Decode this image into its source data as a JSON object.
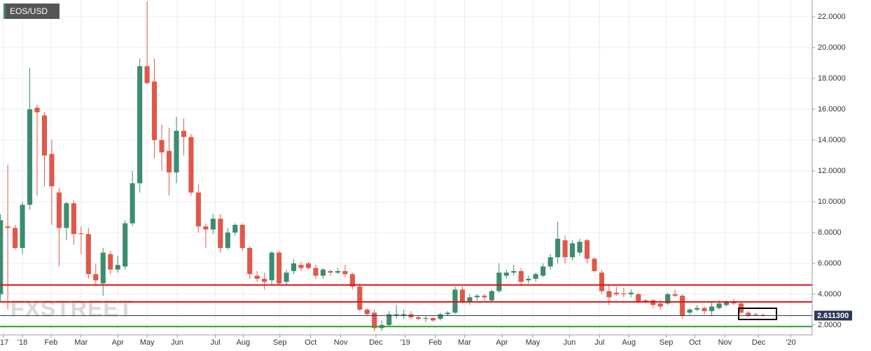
{
  "chart_data": {
    "type": "candlestick",
    "title": "EOS/USD",
    "watermark": "FXSTREET",
    "up_color": "#3d8c6f",
    "down_color": "#e0584a",
    "grid": true,
    "xlim": [
      -0.06,
      110.7
    ],
    "ylim": [
      1.36,
      23.09
    ],
    "xticks": [
      {
        "value": 0.42,
        "label": "'17"
      },
      {
        "value": 3,
        "label": "'18"
      },
      {
        "value": 6.9,
        "label": "Feb"
      },
      {
        "value": 11,
        "label": "Mar"
      },
      {
        "value": 16,
        "label": "Apr"
      },
      {
        "value": 20,
        "label": "May"
      },
      {
        "value": 24.1,
        "label": "Jun"
      },
      {
        "value": 29.3,
        "label": "Jul"
      },
      {
        "value": 33.1,
        "label": "Aug"
      },
      {
        "value": 38.1,
        "label": "Sep"
      },
      {
        "value": 42.3,
        "label": "Oct"
      },
      {
        "value": 46.4,
        "label": "Nov"
      },
      {
        "value": 51.2,
        "label": "Dec"
      },
      {
        "value": 55.2,
        "label": "'19"
      },
      {
        "value": 59.3,
        "label": "Feb"
      },
      {
        "value": 63.3,
        "label": "Mar"
      },
      {
        "value": 68.4,
        "label": "Apr"
      },
      {
        "value": 72.6,
        "label": "May"
      },
      {
        "value": 77.6,
        "label": "Jun"
      },
      {
        "value": 81.7,
        "label": "Jul"
      },
      {
        "value": 85.7,
        "label": "Aug"
      },
      {
        "value": 90.8,
        "label": "Sep"
      },
      {
        "value": 94.7,
        "label": "Oct"
      },
      {
        "value": 98.8,
        "label": "Nov"
      },
      {
        "value": 103.4,
        "label": "Dec"
      },
      {
        "value": 107.8,
        "label": "'20"
      }
    ],
    "yticks": [
      {
        "value": 2,
        "label": "2.0000"
      },
      {
        "value": 4,
        "label": "4.0000"
      },
      {
        "value": 6,
        "label": "6.0000"
      },
      {
        "value": 8,
        "label": "8.0000"
      },
      {
        "value": 10,
        "label": "10.0000"
      },
      {
        "value": 12,
        "label": "12.0000"
      },
      {
        "value": 14,
        "label": "14.0000"
      },
      {
        "value": 16,
        "label": "16.0000"
      },
      {
        "value": 18,
        "label": "18.0000"
      },
      {
        "value": 20,
        "label": "20.0000"
      },
      {
        "value": 22,
        "label": "22.0000"
      }
    ],
    "x": [
      0,
      1,
      2,
      3,
      4,
      5,
      6,
      7,
      8,
      9,
      10,
      11,
      12,
      13,
      14,
      15,
      16,
      17,
      18,
      19,
      20,
      21,
      22,
      23,
      24,
      25,
      26,
      27,
      28,
      29,
      30,
      31,
      32,
      33,
      34,
      35,
      36,
      37,
      38,
      39,
      40,
      41,
      42,
      43,
      44,
      45,
      46,
      47,
      48,
      49,
      50,
      51,
      52,
      53,
      54,
      55,
      56,
      57,
      58,
      59,
      60,
      61,
      62,
      63,
      64,
      65,
      66,
      67,
      68,
      69,
      70,
      71,
      72,
      73,
      74,
      75,
      76,
      77,
      78,
      79,
      80,
      81,
      82,
      83,
      84,
      85,
      86,
      87,
      88,
      89,
      90,
      91,
      92,
      93,
      94,
      95,
      96,
      97,
      98,
      99,
      100,
      101,
      102,
      103,
      104
    ],
    "open": [
      4.0,
      8.4,
      8.3,
      7.0,
      9.8,
      16.1,
      15.6,
      13.1,
      10.6,
      8.3,
      9.9,
      7.95,
      7.9,
      5.3,
      4.7,
      6.6,
      5.6,
      5.8,
      8.6,
      11.2,
      18.8,
      17.8,
      14.0,
      13.3,
      11.9,
      14.6,
      14.2,
      10.6,
      8.4,
      8.2,
      8.9,
      7.0,
      8.0,
      8.5,
      7.0,
      5.2,
      5.0,
      4.9,
      6.7,
      4.8,
      5.5,
      5.9,
      6.0,
      5.7,
      5.2,
      5.5,
      5.4,
      5.5,
      5.3,
      4.5,
      3.0,
      2.8,
      1.8,
      2.0,
      2.6,
      2.6,
      2.7,
      2.5,
      2.4,
      2.45,
      2.4,
      2.7,
      2.8,
      4.3,
      3.5,
      3.8,
      3.9,
      3.6,
      4.2,
      5.2,
      5.4,
      5.5,
      4.9,
      5.0,
      5.2,
      5.8,
      6.4,
      7.5,
      6.4,
      6.7,
      7.5,
      6.3,
      5.4,
      4.2,
      4.1,
      4.05,
      4.0,
      4.0,
      3.6,
      3.6,
      3.4,
      3.4,
      4.0,
      3.9,
      2.8,
      3.0,
      3.1,
      2.9,
      3.1,
      3.3,
      3.5,
      3.4,
      2.8,
      2.7,
      2.66
    ],
    "high": [
      9.2,
      12.4,
      8.5,
      10.0,
      18.7,
      16.3,
      15.8,
      14.0,
      10.9,
      10.0,
      10.1,
      8.4,
      8.3,
      6.0,
      7.0,
      6.8,
      6.5,
      8.8,
      12.0,
      19.3,
      23.0,
      19.3,
      15.0,
      14.8,
      15.5,
      15.4,
      14.4,
      11.1,
      8.6,
      9.2,
      9.2,
      8.3,
      8.6,
      8.6,
      7.1,
      5.5,
      5.4,
      6.8,
      6.8,
      5.6,
      6.3,
      6.1,
      6.1,
      5.9,
      5.7,
      5.6,
      5.7,
      5.9,
      5.4,
      4.7,
      3.1,
      3.0,
      2.3,
      2.9,
      3.3,
      3.0,
      2.9,
      2.6,
      2.6,
      2.5,
      2.8,
      2.9,
      4.5,
      4.5,
      4.0,
      4.0,
      4.0,
      4.3,
      6.0,
      5.6,
      5.9,
      5.7,
      5.2,
      5.4,
      6.0,
      6.6,
      8.7,
      7.8,
      7.5,
      7.6,
      7.6,
      6.4,
      5.6,
      4.6,
      4.5,
      4.4,
      4.3,
      4.1,
      3.7,
      3.7,
      3.6,
      4.1,
      4.3,
      4.0,
      3.1,
      3.3,
      3.2,
      3.5,
      3.6,
      3.6,
      3.7,
      3.5,
      2.9,
      2.8,
      2.75
    ],
    "low": [
      3.5,
      3.0,
      6.9,
      6.6,
      9.5,
      10.4,
      11.0,
      8.5,
      5.8,
      7.5,
      7.2,
      6.6,
      5.0,
      4.6,
      3.9,
      5.3,
      5.4,
      5.6,
      8.4,
      10.6,
      17.6,
      12.8,
      12.0,
      10.4,
      11.2,
      13.0,
      10.4,
      8.0,
      7.0,
      7.9,
      6.7,
      6.9,
      7.8,
      6.8,
      5.0,
      4.8,
      4.3,
      4.6,
      4.6,
      4.6,
      5.3,
      5.5,
      5.6,
      5.0,
      5.0,
      5.2,
      5.3,
      5.1,
      4.3,
      2.9,
      2.6,
      1.6,
      1.6,
      1.9,
      2.4,
      2.4,
      2.4,
      2.3,
      2.2,
      2.2,
      2.3,
      2.6,
      2.7,
      3.4,
      3.3,
      3.6,
      3.6,
      3.5,
      4.1,
      5.0,
      5.2,
      4.6,
      4.7,
      4.8,
      5.1,
      5.6,
      6.0,
      6.0,
      6.2,
      6.5,
      6.0,
      5.4,
      4.0,
      3.3,
      3.9,
      3.8,
      3.8,
      3.4,
      3.4,
      3.1,
      3.0,
      3.3,
      3.8,
      2.4,
      2.6,
      2.9,
      2.7,
      2.6,
      3.0,
      3.2,
      3.3,
      2.7,
      2.5,
      2.6,
      2.55
    ],
    "close": [
      8.8,
      8.3,
      7.0,
      9.8,
      16.0,
      15.8,
      13.0,
      11.0,
      8.3,
      9.9,
      7.9,
      7.9,
      5.3,
      4.9,
      6.7,
      5.6,
      5.9,
      8.6,
      11.2,
      18.8,
      17.7,
      14.0,
      13.2,
      11.9,
      14.6,
      14.2,
      10.6,
      8.4,
      8.2,
      8.9,
      7.0,
      8.0,
      8.5,
      7.0,
      5.3,
      5.0,
      4.8,
      6.7,
      4.7,
      5.4,
      6.0,
      5.7,
      5.7,
      5.2,
      5.6,
      5.4,
      5.5,
      5.3,
      4.5,
      3.0,
      2.7,
      1.8,
      2.0,
      2.7,
      2.7,
      2.7,
      2.5,
      2.4,
      2.45,
      2.3,
      2.7,
      2.8,
      4.3,
      3.5,
      3.8,
      3.9,
      3.8,
      4.2,
      5.4,
      5.4,
      5.5,
      4.8,
      5.0,
      5.3,
      5.8,
      6.4,
      7.6,
      6.4,
      7.3,
      7.4,
      6.3,
      5.5,
      4.2,
      3.8,
      4.0,
      4.0,
      4.1,
      3.5,
      3.5,
      3.3,
      3.2,
      4.0,
      3.9,
      2.6,
      3.0,
      3.1,
      2.9,
      3.2,
      3.4,
      3.5,
      3.4,
      2.8,
      2.6,
      2.65,
      2.6113
    ],
    "levels": [
      {
        "value": 4.6,
        "color": "#e01010"
      },
      {
        "value": 3.5,
        "color": "#e01010"
      },
      {
        "value": 1.9,
        "color": "#2fa52f"
      }
    ],
    "last_price": {
      "value": 2.6113,
      "label": "2.611300",
      "color": "#2c3a57"
    }
  }
}
